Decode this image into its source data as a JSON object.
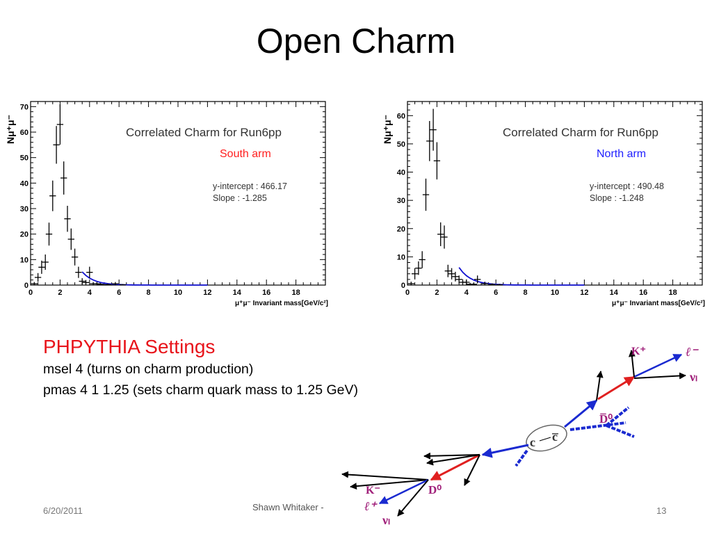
{
  "slide": {
    "title": "Open Charm",
    "settings_heading": "PHPYTHIA Settings",
    "settings_lines": [
      "msel 4 (turns on charm production)",
      "pmas 4 1 1.25 (sets charm quark mass to 1.25 GeV)"
    ],
    "footer_date": "6/20/2011",
    "footer_author": "Shawn Whitaker -",
    "footer_page": "13"
  },
  "colors": {
    "title_red": "#e8141b",
    "fit_blue": "#1010d0",
    "south_label": "#ff2020",
    "north_label": "#2020ff",
    "particle_purple": "#a0207a"
  },
  "chart_data": [
    {
      "type": "scatter",
      "title": "Correlated Charm for Run6pp",
      "subtitle": "South arm",
      "ylabel": "Nμ⁺μ⁻",
      "xlabel": "μ⁺μ⁻ Invariant mass[GeV/c²]",
      "annotations": [
        "y-intercept : 466.17",
        "Slope : -1.285"
      ],
      "xlim": [
        0,
        20
      ],
      "ylim": [
        0,
        72
      ],
      "xticks": [
        0,
        2,
        4,
        6,
        8,
        10,
        12,
        14,
        16,
        18
      ],
      "yticks": [
        0,
        10,
        20,
        30,
        40,
        50,
        60,
        70
      ],
      "fit": {
        "intercept": 466.17,
        "slope": -1.285
      },
      "x": [
        0.25,
        0.5,
        0.75,
        1.0,
        1.25,
        1.5,
        1.75,
        2.0,
        2.25,
        2.5,
        2.75,
        3.0,
        3.25,
        3.5,
        3.75,
        4.0,
        4.25,
        4.5,
        4.75,
        5.25,
        5.75,
        6.25
      ],
      "values": [
        0.5,
        3,
        7,
        9,
        20,
        35,
        55,
        63,
        42,
        26,
        18,
        11,
        5,
        1.5,
        1,
        5,
        0.5,
        0.5,
        0.3,
        0.2,
        0.5,
        0.1
      ],
      "errors": [
        0.7,
        1.7,
        2.6,
        3,
        4.5,
        6,
        7.4,
        7.9,
        6.5,
        5.1,
        4.2,
        3.3,
        2.2,
        1.2,
        1,
        2.2,
        0.7,
        0.7,
        0.5,
        0.4,
        0.7,
        0.3
      ]
    },
    {
      "type": "scatter",
      "title": "Correlated Charm for Run6pp",
      "subtitle": "North arm",
      "ylabel": "Nμ⁺μ⁻",
      "xlabel": "μ⁺μ⁻ Invariant mass[GeV/c²]",
      "annotations": [
        "y-intercept : 490.48",
        "Slope : -1.248"
      ],
      "xlim": [
        0,
        20
      ],
      "ylim": [
        0,
        65
      ],
      "xticks": [
        0,
        2,
        4,
        6,
        8,
        10,
        12,
        14,
        16,
        18
      ],
      "yticks": [
        0,
        10,
        20,
        30,
        40,
        50,
        60
      ],
      "fit": {
        "intercept": 490.48,
        "slope": -1.248
      },
      "x": [
        0.25,
        0.5,
        0.75,
        1.0,
        1.25,
        1.5,
        1.75,
        2.0,
        2.25,
        2.5,
        2.75,
        3.0,
        3.25,
        3.5,
        3.75,
        4.0,
        4.25,
        4.5,
        4.75,
        5.25,
        5.75,
        6.25
      ],
      "values": [
        0.5,
        4,
        6,
        9,
        32,
        51,
        55,
        44,
        18,
        17,
        5,
        4,
        3,
        2,
        1,
        1,
        0.3,
        0.3,
        2,
        0.5,
        0.2,
        0.1
      ],
      "errors": [
        0.7,
        2,
        2.4,
        3,
        5.7,
        7.1,
        7.4,
        6.6,
        4.2,
        4.1,
        2.2,
        2,
        1.7,
        1.4,
        1,
        1,
        0.5,
        0.5,
        1.4,
        0.7,
        0.4,
        0.3
      ]
    }
  ],
  "diagram": {
    "labels": {
      "c": "c",
      "cbar": "c̅",
      "d0_top": "D̅⁰",
      "kplus": "K⁺",
      "lminus": "ℓ⁻",
      "nu_top": "νₗ",
      "d0_bottom": "D⁰",
      "kminus": "K⁻",
      "lplus": "ℓ⁺",
      "nu_bottom": "νₗ"
    }
  }
}
